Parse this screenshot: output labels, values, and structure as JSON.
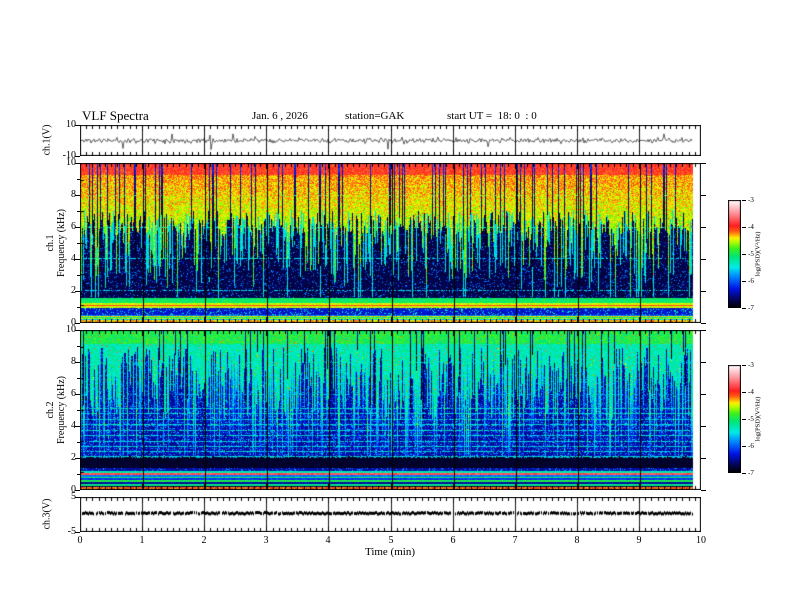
{
  "header": {
    "title": "VLF Spectra",
    "date": "Jan. 6 , 2026",
    "station": "station=GAK",
    "start_ut": "start UT =  18: 0  : 0"
  },
  "axes": {
    "time_label": "Time  (min)",
    "time_ticks": [
      0,
      1,
      2,
      3,
      4,
      5,
      6,
      7,
      8,
      9,
      10
    ],
    "time_minor_step_min": 0.1
  },
  "panels": {
    "ch1_wave": {
      "ylabel": "ch.1(V)",
      "yticks": [
        10,
        -10
      ]
    },
    "ch1_spec": {
      "ylabel_line1": "ch.1",
      "ylabel_line2": "Frequency  (kHz)",
      "yticks": [
        10,
        8,
        6,
        4,
        2,
        0
      ]
    },
    "ch2_spec": {
      "ylabel_line1": "ch.2",
      "ylabel_line2": "Frequency  (kHz)",
      "yticks": [
        10,
        8,
        6,
        4,
        2,
        0
      ]
    },
    "ch3_wave": {
      "ylabel": "ch.3(V)",
      "yticks": [
        5,
        -5
      ]
    }
  },
  "colorbar": {
    "label": "log(PSD)(V²/Hz)",
    "ticks": [
      -3,
      -4,
      -5,
      -6,
      -7
    ],
    "zlim": [
      -7,
      -3
    ],
    "colormap": [
      [
        -7.0,
        "#000000"
      ],
      [
        -6.7,
        "#05055a"
      ],
      [
        -6.3,
        "#0014e6"
      ],
      [
        -5.9,
        "#0078ff"
      ],
      [
        -5.5,
        "#00ebeb"
      ],
      [
        -5.1,
        "#00e678"
      ],
      [
        -4.8,
        "#3cf01e"
      ],
      [
        -4.55,
        "#b4ff00"
      ],
      [
        -4.4,
        "#fff000"
      ],
      [
        -4.15,
        "#ff5a14"
      ],
      [
        -3.95,
        "#ff1e1e"
      ],
      [
        -3.5,
        "#ff8c96"
      ],
      [
        -3.0,
        "#ffffff"
      ]
    ]
  },
  "chart_data": [
    {
      "type": "line",
      "panel": "ch.1(V) waveform",
      "xlabel": "Time (min)",
      "xlim": [
        0,
        10
      ],
      "x_data_end": 9.85,
      "ylim": [
        -10,
        10
      ],
      "yticks": [
        10,
        -10
      ],
      "series": [
        {
          "name": "ch.1 voltage",
          "color": "#000000",
          "baseline": 0,
          "noise_amplitude_V": 1.5,
          "spike_amplitude_V": 8,
          "description": "continuous broadband noise of ~±1.5 V about 0 V with frequent impulsive sferic spikes reaching ±8 V over the full 0–9.85 min record"
        }
      ],
      "grid": "vertical line each 1 min"
    },
    {
      "type": "heatmap",
      "panel": "ch.1 spectrogram",
      "xlabel": "Time (min)",
      "xlim": [
        0,
        10
      ],
      "x_data_end": 9.85,
      "ylabel": "ch.1 Frequency (kHz)",
      "ylim": [
        0,
        10
      ],
      "yticks": [
        0,
        2,
        4,
        6,
        8,
        10
      ],
      "zlabel": "log(PSD)(V²/Hz)",
      "zlim": [
        -7,
        -3
      ],
      "features": [
        "intense broadband power (−4.5 to −3.8, yellow/orange/red) above ~6–7 kHz for the whole record",
        "dense vertical sferic streaks (green/cyan, ~−5.4) penetrating down to 1–4 kHz",
        "dark background (~−6.8) between ~1.5 and 6 kHz",
        "bright yellow/orange band (~−4.4) near 1 kHz with a red line at ~1.0 kHz",
        "green band ~1.2–1.5 kHz",
        "multicoloured power-line-harmonic stripes (−6 to −4.3) below ~0.4 kHz",
        "faint dotted cyan horizontal grid lines at 2,4,6,8 kHz",
        "black vertical grid line each 1 min"
      ]
    },
    {
      "type": "heatmap",
      "panel": "ch.2 spectrogram",
      "xlabel": "Time (min)",
      "xlim": [
        0,
        10
      ],
      "x_data_end": 9.85,
      "ylabel": "ch.2 Frequency (kHz)",
      "ylim": [
        0,
        10
      ],
      "yticks": [
        0,
        2,
        4,
        6,
        8,
        10
      ],
      "zlabel": "log(PSD)(V²/Hz)",
      "zlim": [
        -7,
        -3
      ],
      "features": [
        "moderate broadband power (green/cyan, ~−5.2) above ~5–9 kHz, brightest near 9–10 kHz",
        "many vertical cyan sferic streaks over a blue (~−6.4) background",
        "dashed cyan horizontal lines (~−5.5) every ~0.3–0.4 kHz between 2 and 5 kHz",
        "darker band (~−6.8) between ~1.3 and 2 kHz",
        "bright horizontal stripes below ~1.1 kHz including a near-white line at ~0.9 kHz and a red line at ~0.05 kHz",
        "black vertical grid line each 1 min"
      ]
    },
    {
      "type": "line",
      "panel": "ch.3(V) waveform",
      "xlabel": "Time (min)",
      "xlim": [
        0,
        10
      ],
      "x_data_end": 9.85,
      "ylim": [
        -5,
        5
      ],
      "yticks": [
        5,
        -5
      ],
      "series": [
        {
          "name": "ch.3 voltage",
          "color": "#000000",
          "baseline": 0.3,
          "noise_amplitude_V": 0.3,
          "description": "nearly constant trace at ~+0.3 V drawn as a thick speckled black band"
        }
      ],
      "grid": "vertical line each 1 min"
    }
  ]
}
